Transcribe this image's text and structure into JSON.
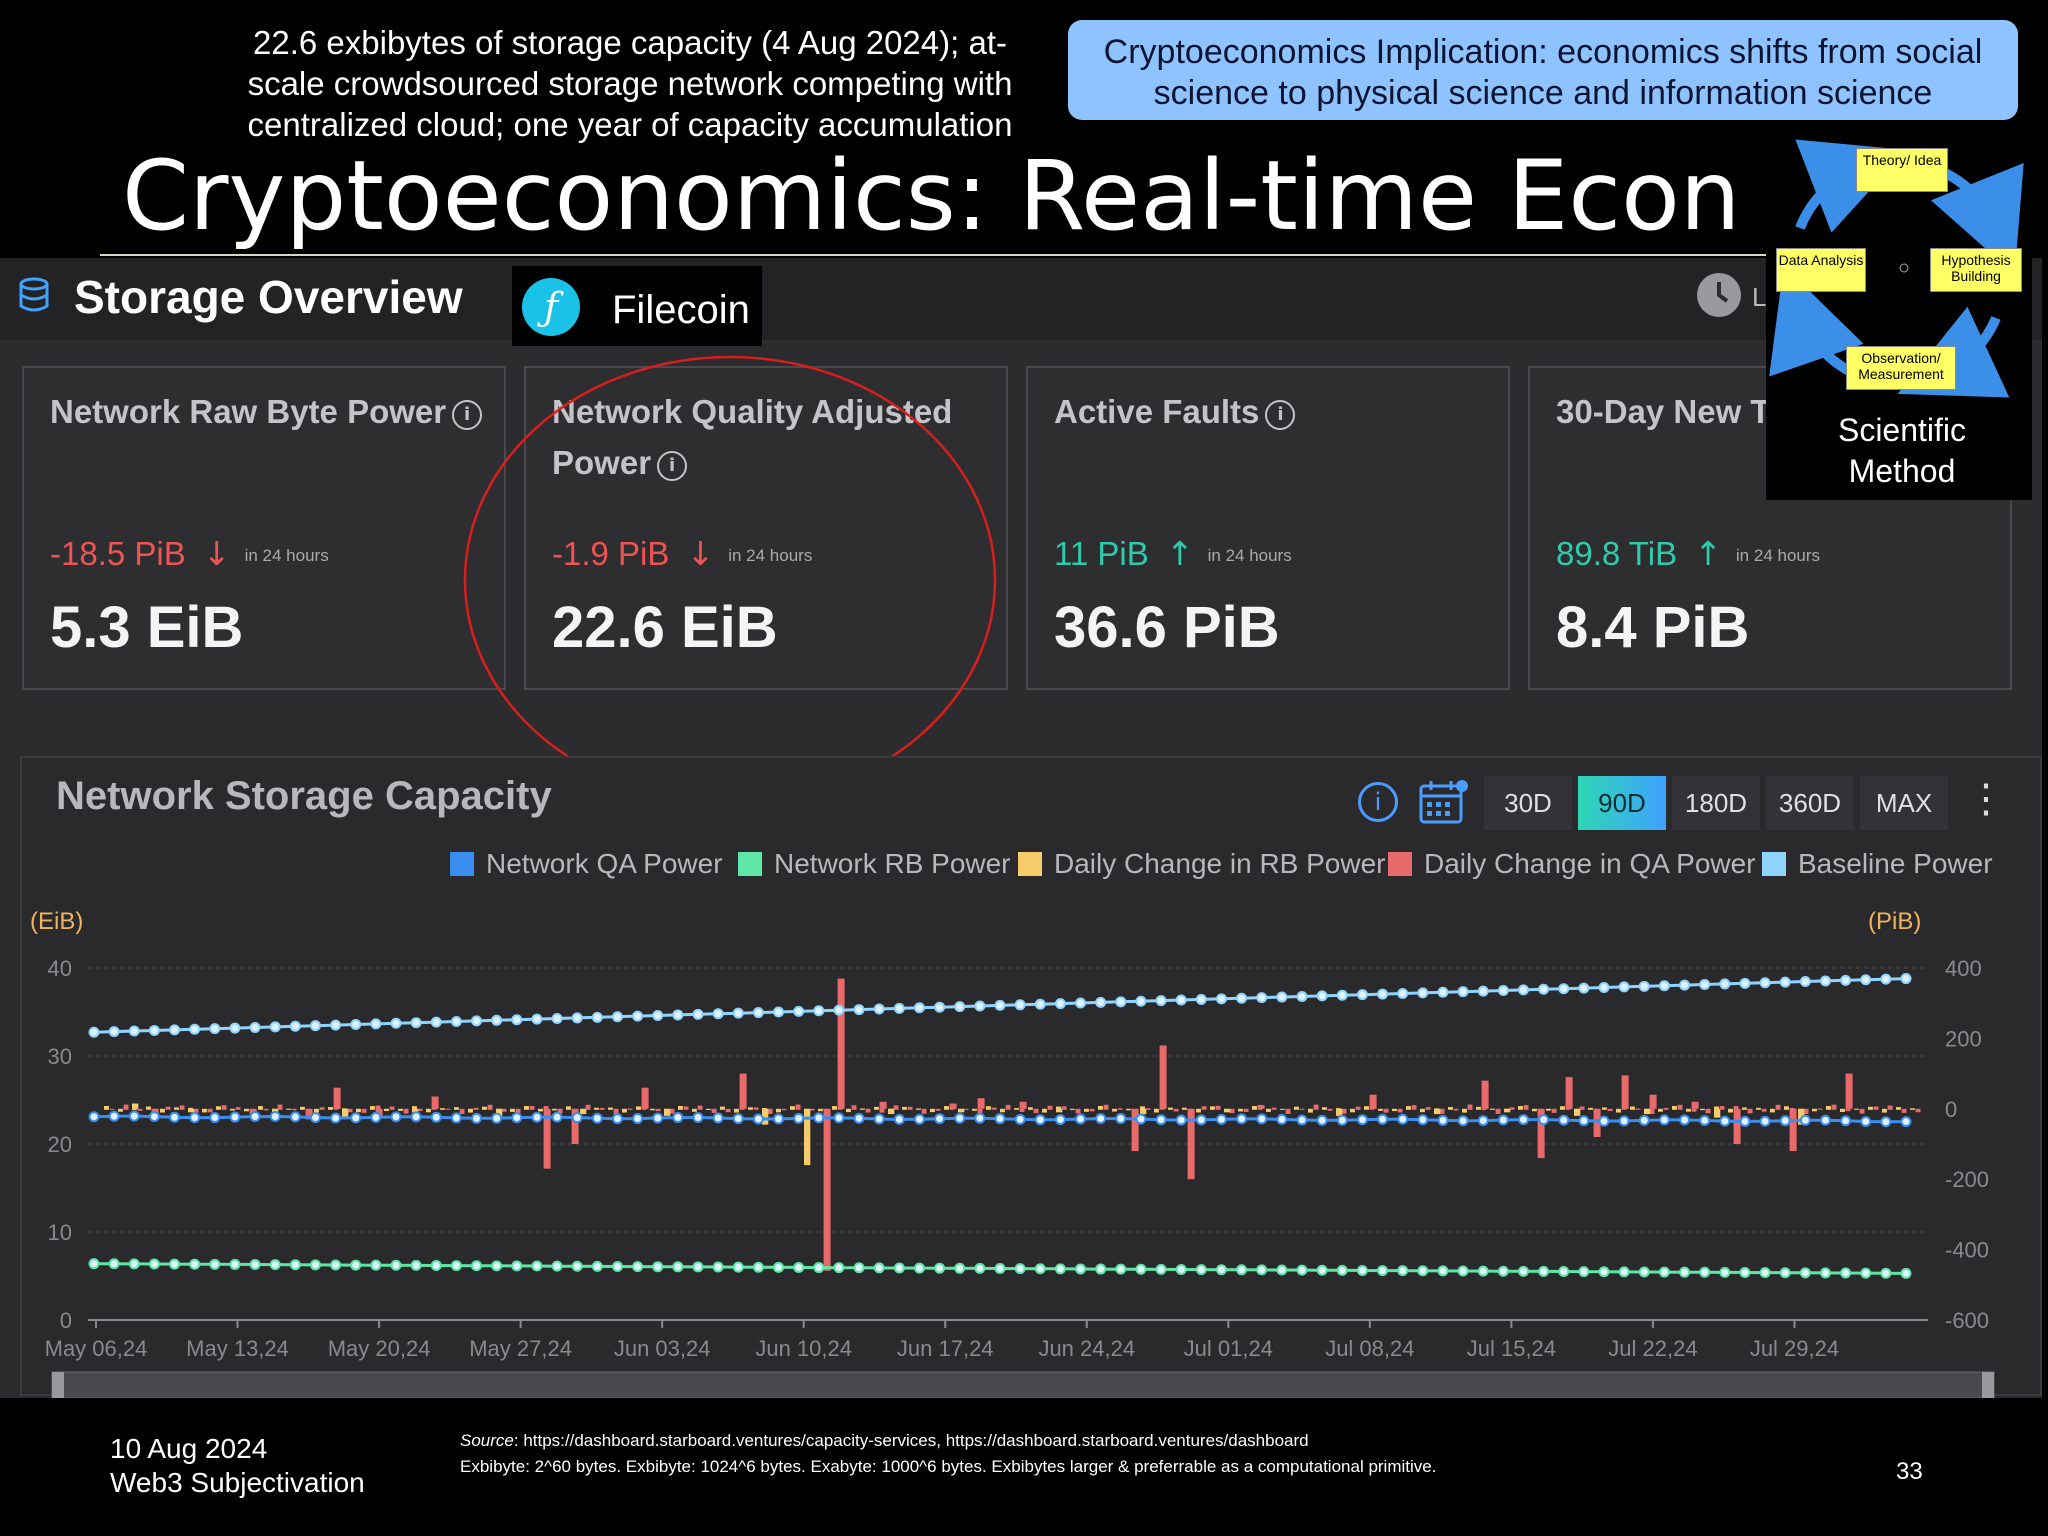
{
  "slide": {
    "note_left": "22.6 exbibytes of storage capacity (4 Aug 2024); at-scale crowdsourced storage network competing with centralized cloud; one year of capacity accumulation",
    "note_right": "Cryptoeconomics Implication: economics shifts from social science to physical science and information science",
    "title": "Cryptoeconomics: Real-time Econ Data",
    "footer_date": "10 Aug 2024",
    "footer_org": "Web3 Subjectivation",
    "source_label": "Source",
    "source_text": ": https://dashboard.starboard.ventures/capacity-services, https://dashboard.starboard.ventures/dashboard",
    "exbibyte_note": "Exbibyte: 2^60 bytes. Exbibyte: 1024^6 bytes. Exabyte: 1000^6 bytes. Exbibytes larger & preferrable as a computational primitive.",
    "page_number": "33"
  },
  "scientific_method": {
    "nodes": [
      "Theory/ Idea",
      "Hypothesis Building",
      "Observation/ Measurement",
      "Data Analysis"
    ],
    "caption": "Scientific Method"
  },
  "dashboard": {
    "section_title": "Storage Overview",
    "network_name": "Filecoin",
    "clock_text": "L",
    "cards": [
      {
        "title": "Network Raw Byte Power",
        "change": "-18.5 PiB",
        "direction": "down",
        "period": "in 24 hours",
        "value": "5.3 EiB"
      },
      {
        "title": "Network Quality Adjusted Power",
        "change": "-1.9 PiB",
        "direction": "down",
        "period": "in 24 hours",
        "value": "22.6 EiB"
      },
      {
        "title": "Active Faults",
        "change": "11 PiB",
        "direction": "up",
        "period": "in 24 hours",
        "value": "36.6 PiB"
      },
      {
        "title": "30-Day New Te",
        "change": "89.8 TiB",
        "direction": "up",
        "period": "in 24 hours",
        "value": "8.4 PiB"
      }
    ],
    "chart_title": "Network Storage Capacity",
    "ranges": [
      "30D",
      "90D",
      "180D",
      "360D",
      "MAX"
    ],
    "active_range": "90D",
    "colors": {
      "qa": "#3a8ef0",
      "rb": "#5ee6a4",
      "rb_change": "#f6cb6a",
      "qa_change": "#e86a6a",
      "baseline": "#8fd4ff"
    }
  },
  "chart_data": {
    "type": "line",
    "series_names": [
      "Network QA Power",
      "Network RB Power",
      "Daily Change in RB Power",
      "Daily Change in QA Power",
      "Baseline Power"
    ],
    "y_left_label": "(EiB)",
    "y_right_label": "(PiB)",
    "y_left_ticks": [
      "0",
      "10",
      "20",
      "30",
      "40"
    ],
    "y_right_ticks": [
      "400",
      "200",
      "0",
      "-200",
      "-400",
      "-600"
    ],
    "ylim_left": [
      0,
      40
    ],
    "ylim_right": [
      -600,
      400
    ],
    "x_ticks": [
      "May 06,24",
      "May 13,24",
      "May 20,24",
      "May 27,24",
      "Jun 03,24",
      "Jun 10,24",
      "Jun 17,24",
      "Jun 24,24",
      "Jul 01,24",
      "Jul 08,24",
      "Jul 15,24",
      "Jul 22,24",
      "Jul 29,24"
    ],
    "days": 91,
    "qa_start": 23.1,
    "qa_end": 22.6,
    "rb_start": 6.4,
    "rb_end": 5.3,
    "baseline_start": 32.7,
    "baseline_end": 38.8,
    "qa_change_spikes": [
      [
        3,
        -20
      ],
      [
        10,
        -15
      ],
      [
        14,
        -30
      ],
      [
        16,
        60
      ],
      [
        19,
        -20
      ],
      [
        23,
        35
      ],
      [
        31,
        -170
      ],
      [
        33,
        -100
      ],
      [
        38,
        60
      ],
      [
        45,
        100
      ],
      [
        51,
        -460
      ],
      [
        52,
        370
      ],
      [
        55,
        20
      ],
      [
        60,
        15
      ],
      [
        62,
        30
      ],
      [
        65,
        20
      ],
      [
        73,
        -120
      ],
      [
        75,
        180
      ],
      [
        77,
        -200
      ],
      [
        82,
        10
      ],
      [
        90,
        40
      ],
      [
        98,
        80
      ],
      [
        102,
        -140
      ],
      [
        104,
        90
      ],
      [
        106,
        -80
      ],
      [
        108,
        95
      ],
      [
        110,
        40
      ],
      [
        113,
        20
      ],
      [
        116,
        -100
      ],
      [
        120,
        -120
      ],
      [
        124,
        100
      ]
    ],
    "rb_change_spikes": [
      [
        2,
        15
      ],
      [
        6,
        -10
      ],
      [
        12,
        -15
      ],
      [
        17,
        -25
      ],
      [
        22,
        -10
      ],
      [
        28,
        -30
      ],
      [
        34,
        -15
      ],
      [
        40,
        -20
      ],
      [
        47,
        -45
      ],
      [
        50,
        -160
      ],
      [
        56,
        -15
      ],
      [
        61,
        -10
      ],
      [
        68,
        -10
      ],
      [
        74,
        -15
      ],
      [
        80,
        -10
      ],
      [
        88,
        -20
      ],
      [
        95,
        -15
      ],
      [
        100,
        -10
      ],
      [
        105,
        -20
      ],
      [
        110,
        -15
      ],
      [
        115,
        -25
      ],
      [
        121,
        -45
      ]
    ]
  }
}
